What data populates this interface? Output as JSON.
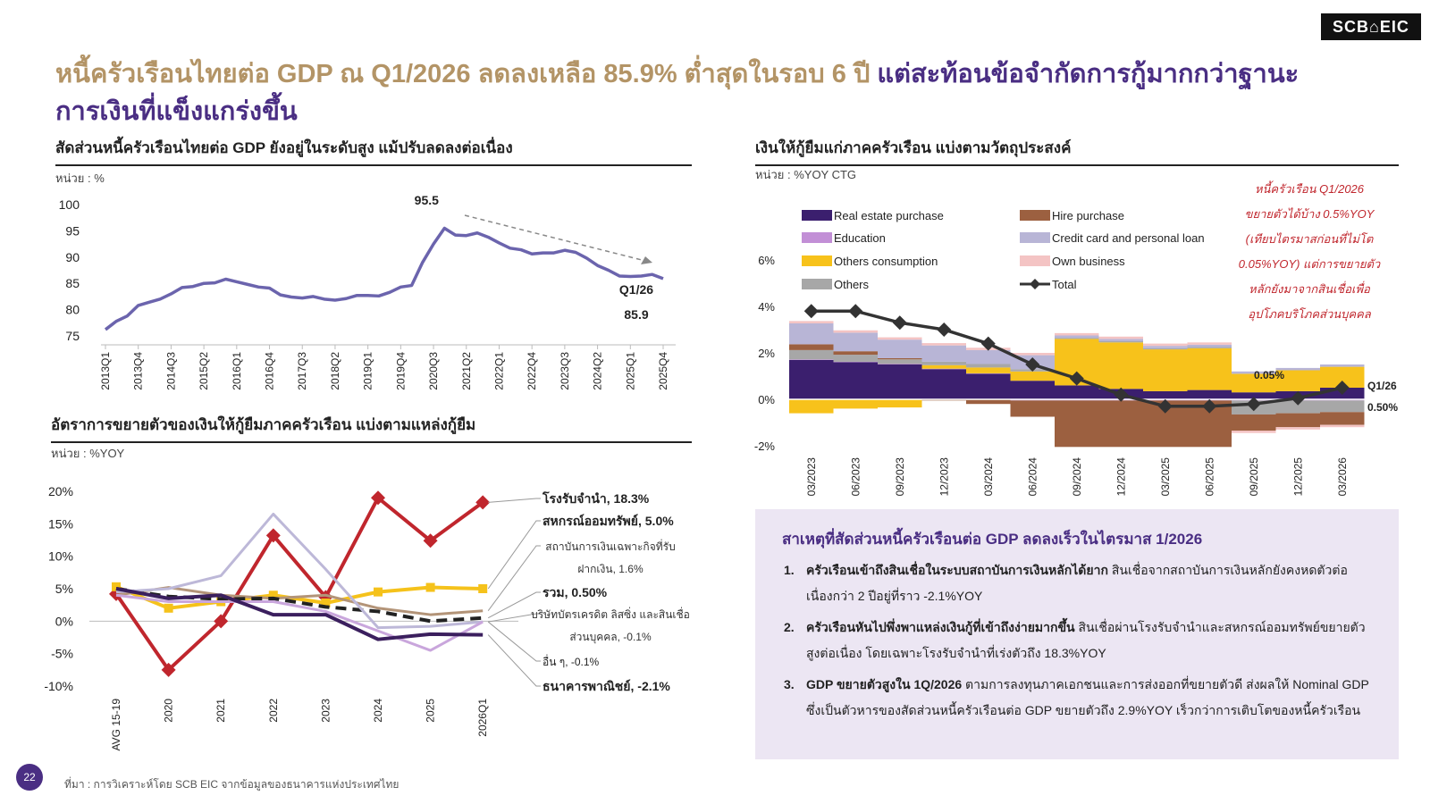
{
  "logo": "SCB⌂EIC",
  "title": {
    "part1": "หนี้ครัวเรือนไทยต่อ GDP ณ Q1/2026 ลดลงเหลือ 85.9% ต่ำสุดในรอบ 6 ปี ",
    "part2": "แต่สะท้อนข้อจำกัดการกู้มากกว่าฐานะการเงินที่แข็งแกร่งขึ้น"
  },
  "colors": {
    "accent_gold": "#b39466",
    "accent_purple": "#4a2e83",
    "line_debt": "#6b64ad",
    "red_note": "#c0262d",
    "box_bg": "#ece6f3"
  },
  "chart_data": [
    {
      "type": "line",
      "section_title": "สัดส่วนหนี้ครัวเรือนไทยต่อ GDP ยังอยู่ในระดับสูง แม้ปรับลดลงต่อเนื่อง",
      "unit": "หน่วย : %",
      "ylim": [
        75,
        100
      ],
      "yticks": [
        "100",
        "95",
        "90",
        "85",
        "80",
        "75"
      ],
      "x_tick_labels": [
        "2013Q1",
        "2013Q4",
        "2014Q3",
        "2015Q2",
        "2016Q1",
        "2016Q4",
        "2017Q3",
        "2018Q2",
        "2019Q1",
        "2019Q4",
        "2020Q3",
        "2021Q2",
        "2022Q1",
        "2022Q4",
        "2023Q3",
        "2024Q2",
        "2025Q1",
        "2025Q4"
      ],
      "values": [
        76.2,
        77.8,
        78.8,
        80.8,
        81.4,
        82.0,
        83.0,
        84.2,
        84.4,
        85.0,
        85.1,
        85.8,
        85.3,
        84.8,
        84.3,
        84.1,
        82.8,
        82.4,
        82.2,
        82.5,
        82.0,
        81.8,
        82.1,
        82.7,
        82.7,
        82.6,
        83.3,
        84.3,
        84.6,
        89.0,
        92.5,
        95.5,
        94.2,
        94.1,
        94.6,
        93.8,
        92.7,
        91.7,
        91.4,
        90.6,
        90.8,
        90.8,
        91.3,
        90.9,
        89.8,
        88.4,
        87.5,
        86.4,
        86.3,
        86.4,
        86.7,
        85.9
      ],
      "peak_label": "95.5",
      "end_label_period": "Q1/26",
      "end_label_value": "85.9",
      "grid": false
    },
    {
      "type": "line",
      "section_title": "อัตราการขยายตัวของเงินให้กู้ยืมภาคครัวเรือน แบ่งตามแหล่งกู้ยืม",
      "unit": "หน่วย : %YOY",
      "ylim": [
        -10,
        20
      ],
      "yticks": [
        "20%",
        "15%",
        "10%",
        "5%",
        "0%",
        "-5%",
        "-10%"
      ],
      "categories": [
        "AVG 15-19",
        "2020",
        "2021",
        "2022",
        "2023",
        "2024",
        "2025",
        "2026Q1"
      ],
      "series": [
        {
          "name": "โรงรับจำนำ, 18.3%",
          "color": "#c0262d",
          "values": [
            4.2,
            -7.5,
            0.0,
            13.2,
            3.7,
            19.0,
            12.4,
            18.3
          ],
          "markers": true,
          "bold": true
        },
        {
          "name": "สหกรณ์ออมทรัพย์, 5.0%",
          "color": "#f5c21b",
          "values": [
            5.3,
            2.0,
            3.0,
            4.0,
            2.8,
            4.5,
            5.2,
            5.0
          ],
          "markers": "square",
          "bold": true
        },
        {
          "name": "สถาบันการเงินเฉพาะกิจที่รับฝากเงิน, 1.6%",
          "color": "#b39478",
          "values": [
            4.0,
            5.2,
            4.0,
            3.5,
            4.0,
            2.0,
            1.0,
            1.6
          ],
          "bold": false
        },
        {
          "name": "รวม, 0.50%",
          "color": "#222222",
          "values": [
            5.0,
            3.8,
            3.4,
            3.5,
            2.2,
            1.5,
            0.0,
            0.5
          ],
          "dashed": true,
          "bold": true
        },
        {
          "name": "บริษัทบัตรเครดิต ลิสซิ่ง และสินเชื่อส่วนบุคคล, -0.1%",
          "color": "#bdb8d8",
          "values": [
            4.5,
            5.0,
            7.0,
            16.5,
            8.0,
            -1.0,
            -0.8,
            -0.1
          ],
          "bold": false
        },
        {
          "name": "อื่น ๆ, -0.1%",
          "color": "#c9a6dc",
          "values": [
            4.0,
            3.0,
            3.0,
            3.0,
            1.5,
            -1.5,
            -4.5,
            -0.1
          ],
          "bold": false
        },
        {
          "name": "ธนาคารพาณิชย์, -2.1%",
          "color": "#3b1f5e",
          "values": [
            5.0,
            3.5,
            4.0,
            1.0,
            1.0,
            -2.8,
            -2.0,
            -2.1
          ],
          "bold": true
        }
      ],
      "grid": false
    },
    {
      "type": "bar",
      "stacked": true,
      "section_title": "เงินให้กู้ยืมแก่ภาคครัวเรือน แบ่งตามวัตถุประสงค์",
      "unit": "หน่วย : %YOY CTG",
      "ylim": [
        -2,
        6
      ],
      "yticks": [
        "6%",
        "4%",
        "2%",
        "0%",
        "-2%"
      ],
      "categories": [
        "03/2023",
        "06/2023",
        "09/2023",
        "12/2023",
        "03/2024",
        "06/2024",
        "09/2024",
        "12/2024",
        "03/2025",
        "06/2025",
        "09/2025",
        "12/2025",
        "03/2026"
      ],
      "series": [
        {
          "name": "Real estate purchase",
          "color": "#3b1f6e",
          "values": [
            1.7,
            1.6,
            1.5,
            1.3,
            1.1,
            0.8,
            0.6,
            0.45,
            0.35,
            0.4,
            0.3,
            0.35,
            0.5
          ]
        },
        {
          "name": "Education",
          "color": "#c28fd6",
          "values": [
            0.02,
            0.02,
            0.02,
            0.02,
            0.02,
            -0.05,
            -0.05,
            -0.05,
            -0.05,
            -0.05,
            -0.05,
            -0.05,
            -0.05
          ]
        },
        {
          "name": "Others consumption",
          "color": "#f7c21b",
          "values": [
            -0.6,
            -0.4,
            -0.35,
            0.15,
            0.25,
            0.4,
            2.0,
            2.0,
            1.8,
            1.8,
            0.8,
            0.9,
            0.9
          ]
        },
        {
          "name": "Others",
          "color": "#a7a7a7",
          "values": [
            0.4,
            0.3,
            0.2,
            0.15,
            0.15,
            0.1,
            0.05,
            0.05,
            0.05,
            0.05,
            -0.6,
            -0.55,
            -0.5
          ]
        },
        {
          "name": "Hire purchase",
          "color": "#9c6040",
          "values": [
            0.25,
            0.15,
            0.05,
            -0.05,
            -0.2,
            -0.7,
            -2.0,
            -2.0,
            -2.0,
            -2.0,
            -0.7,
            -0.6,
            -0.55
          ]
        },
        {
          "name": "Credit card and personal loan",
          "color": "#b8b5d6",
          "values": [
            0.9,
            0.8,
            0.8,
            0.7,
            0.6,
            0.6,
            0.1,
            0.1,
            0.1,
            0.1,
            0.1,
            0.1,
            0.1
          ]
        },
        {
          "name": "Own business",
          "color": "#f4c4c4",
          "values": [
            0.1,
            0.1,
            0.1,
            0.1,
            0.1,
            0.1,
            0.1,
            0.1,
            0.1,
            0.1,
            -0.1,
            -0.1,
            -0.1
          ]
        },
        {
          "name": "Total",
          "color": "#333333",
          "values": [
            3.8,
            3.8,
            3.3,
            3.0,
            2.4,
            1.5,
            0.9,
            0.2,
            -0.3,
            -0.3,
            -0.2,
            0.05,
            0.5
          ]
        }
      ],
      "labels": {
        "bar_label": "0.05%",
        "end_period": "Q1/26",
        "end_value": "0.50%"
      },
      "legend_position": "top",
      "grid": false
    }
  ],
  "note_lines": [
    "หนี้ครัวเรือน Q1/2026",
    "ขยายตัวได้บ้าง 0.5%YOY",
    "(เทียบไตรมาสก่อนที่ไม่โต",
    "0.05%YOY) แต่การขยายตัว",
    "หลักยังมาจากสินเชื่อเพื่อ",
    "อุปโภคบริโภคส่วนบุคคล"
  ],
  "box": {
    "title": "สาเหตุที่สัดส่วนหนี้ครัวเรือนต่อ GDP ลดลงเร็วในไตรมาส 1/2026",
    "reasons": [
      {
        "num": "1.",
        "bold": "ครัวเรือนเข้าถึงสินเชื่อในระบบสถาบันการเงินหลักได้ยาก",
        "text": " สินเชื่อจากสถาบันการเงินหลักยังคงหดตัวต่อเนื่องกว่า 2 ปีอยู่ที่ราว -2.1%YOY"
      },
      {
        "num": "2.",
        "bold": "ครัวเรือนหันไปพึ่งพาแหล่งเงินกู้ที่เข้าถึงง่ายมากขึ้น",
        "text": " สินเชื่อผ่านโรงรับจำนำและสหกรณ์ออมทรัพย์ขยายตัวสูงต่อเนื่อง โดยเฉพาะโรงรับจำนำที่เร่งตัวถึง 18.3%YOY"
      },
      {
        "num": "3.",
        "bold": "GDP ขยายตัวสูงใน 1Q/2026",
        "text": " ตามการลงทุนภาคเอกชนและการส่งออกที่ขยายตัวดี ส่งผลให้ Nominal GDP ซึ่งเป็นตัวหารของสัดส่วนหนี้ครัวเรือนต่อ GDP ขยายตัวถึง 2.9%YOY เร็วกว่าการเติบโตของหนี้ครัวเรือน"
      }
    ]
  },
  "page_number": "22",
  "source": "ที่มา : การวิเคราะห์โดย SCB EIC จากข้อมูลของธนาคารแห่งประเทศไทย"
}
